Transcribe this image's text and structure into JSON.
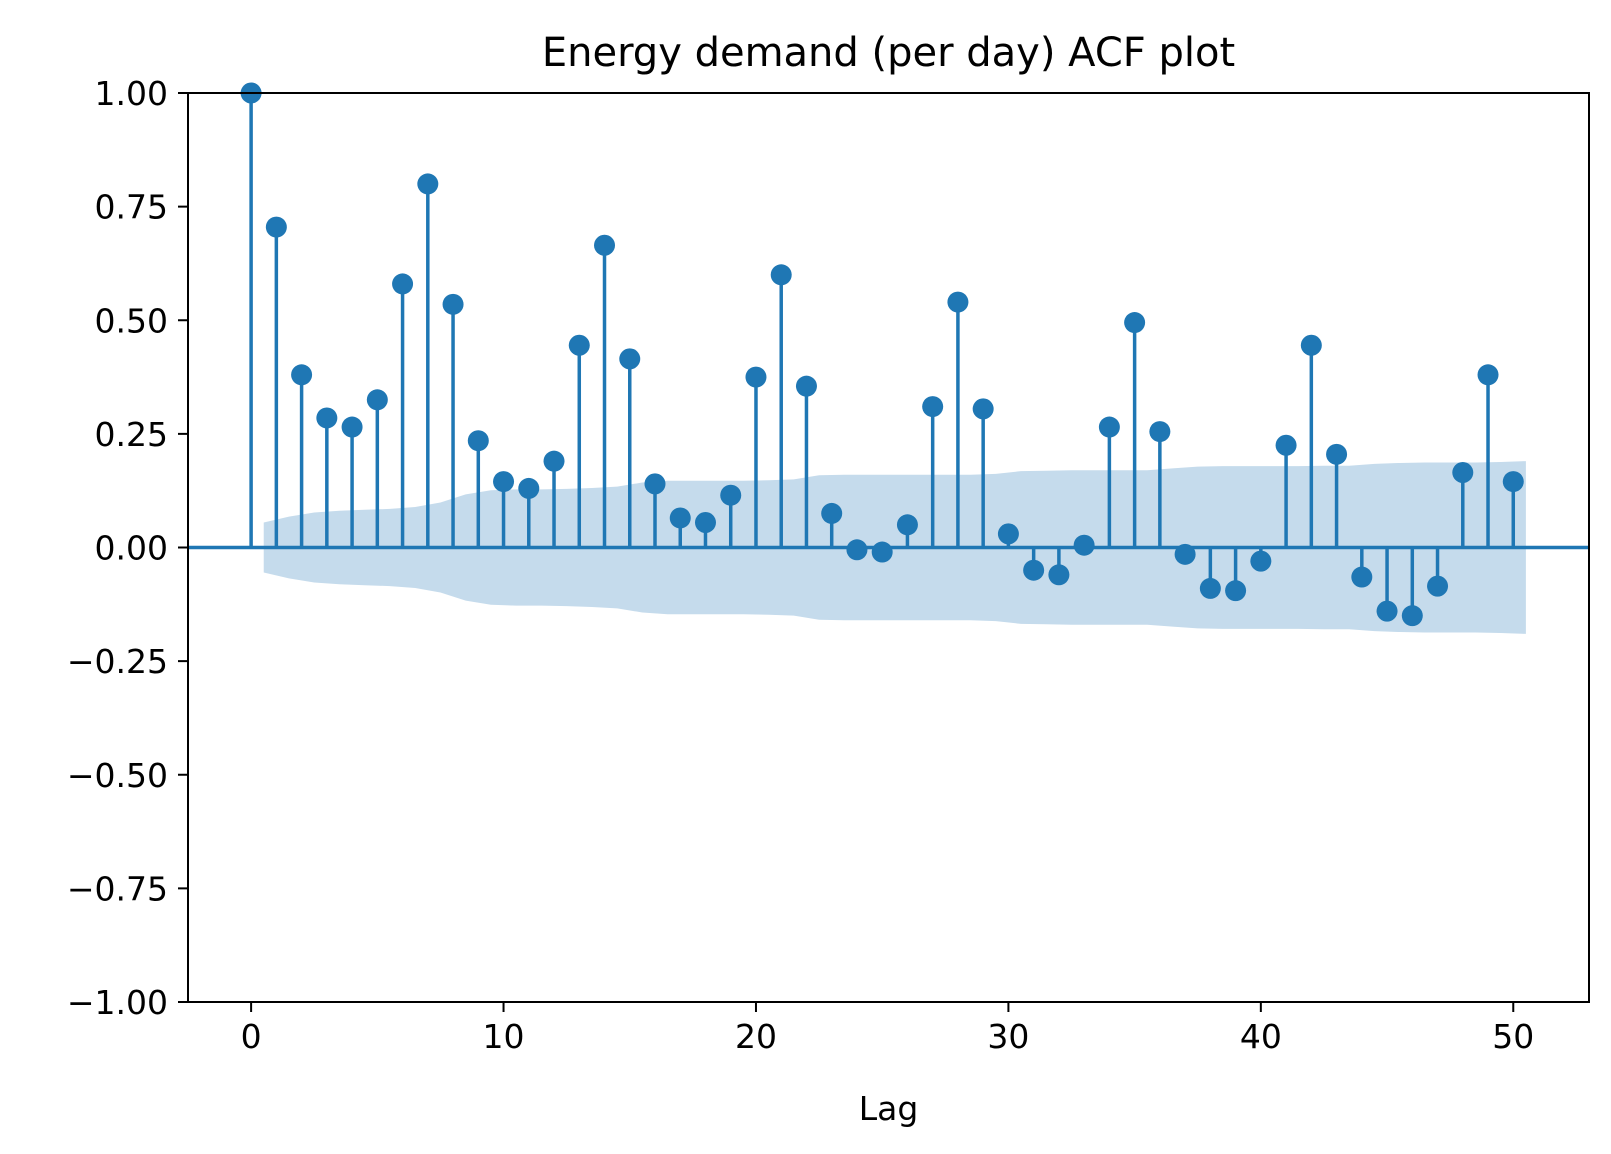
{
  "chart_data": {
    "type": "stem",
    "title": "Energy demand (per day) ACF plot",
    "xlabel": "Lag",
    "ylabel": "",
    "xlim": [
      -2.5,
      53
    ],
    "ylim": [
      -1.0,
      1.0
    ],
    "xticks": [
      0,
      10,
      20,
      30,
      40,
      50
    ],
    "xtick_labels": [
      "0",
      "10",
      "20",
      "30",
      "40",
      "50"
    ],
    "yticks": [
      -1.0,
      -0.75,
      -0.5,
      -0.25,
      0.0,
      0.25,
      0.5,
      0.75,
      1.0
    ],
    "ytick_labels": [
      "−1.00",
      "−0.75",
      "−0.50",
      "−0.25",
      "0.00",
      "0.25",
      "0.50",
      "0.75",
      "1.00"
    ],
    "grid": false,
    "legend": "none",
    "series_color": "#1f77b4",
    "band_color": "#c5dbec",
    "lags": [
      0,
      1,
      2,
      3,
      4,
      5,
      6,
      7,
      8,
      9,
      10,
      11,
      12,
      13,
      14,
      15,
      16,
      17,
      18,
      19,
      20,
      21,
      22,
      23,
      24,
      25,
      26,
      27,
      28,
      29,
      30,
      31,
      32,
      33,
      34,
      35,
      36,
      37,
      38,
      39,
      40,
      41,
      42,
      43,
      44,
      45,
      46,
      47,
      48,
      49,
      50
    ],
    "acf": [
      1.0,
      0.705,
      0.38,
      0.285,
      0.265,
      0.325,
      0.58,
      0.8,
      0.535,
      0.235,
      0.145,
      0.13,
      0.19,
      0.445,
      0.665,
      0.415,
      0.14,
      0.065,
      0.055,
      0.115,
      0.375,
      0.6,
      0.355,
      0.075,
      -0.005,
      -0.01,
      0.05,
      0.31,
      0.54,
      0.305,
      0.03,
      -0.05,
      -0.06,
      0.005,
      0.265,
      0.495,
      0.255,
      -0.015,
      -0.09,
      -0.095,
      -0.03,
      0.225,
      0.445,
      0.205,
      -0.065,
      -0.14,
      -0.15,
      -0.085,
      0.165,
      0.38,
      0.145
    ],
    "confidence_band": {
      "x": [
        0.5,
        1.5,
        2.5,
        3.5,
        4.5,
        5.5,
        6.5,
        7.5,
        8.5,
        9.5,
        10.5,
        11.5,
        12.5,
        13.5,
        14.5,
        15.5,
        16.5,
        17.5,
        18.5,
        19.5,
        20.5,
        21.5,
        22.5,
        23.5,
        24.5,
        25.5,
        26.5,
        27.5,
        28.5,
        29.5,
        30.5,
        31.5,
        32.5,
        33.5,
        34.5,
        35.5,
        36.5,
        37.5,
        38.5,
        39.5,
        40.5,
        41.5,
        42.5,
        43.5,
        44.5,
        45.5,
        46.5,
        47.5,
        48.5,
        49.5,
        50.5
      ],
      "upper": [
        0.055,
        0.068,
        0.077,
        0.081,
        0.083,
        0.085,
        0.089,
        0.099,
        0.117,
        0.126,
        0.128,
        0.128,
        0.129,
        0.131,
        0.134,
        0.143,
        0.147,
        0.147,
        0.147,
        0.147,
        0.148,
        0.15,
        0.159,
        0.16,
        0.16,
        0.16,
        0.16,
        0.16,
        0.16,
        0.162,
        0.168,
        0.169,
        0.17,
        0.17,
        0.17,
        0.17,
        0.174,
        0.178,
        0.179,
        0.179,
        0.179,
        0.179,
        0.18,
        0.18,
        0.184,
        0.186,
        0.187,
        0.187,
        0.187,
        0.188,
        0.19
      ]
    }
  }
}
